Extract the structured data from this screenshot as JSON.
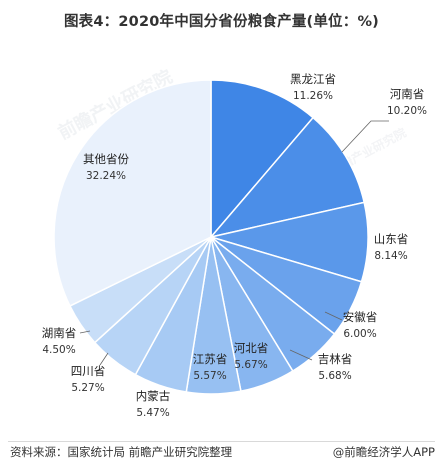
{
  "title": "图表4：2020年中国分省份粮食产量(单位：%)",
  "source": "资料来源：国家统计局 前瞻产业研究院整理",
  "brand": "@前瞻经济学人APP",
  "watermark": "前瞻产业研究院",
  "chart_data": {
    "type": "pie",
    "title": "图表4：2020年中国分省份粮食产量(单位：%)",
    "unit": "%",
    "slices": [
      {
        "label": "黑龙江省",
        "value": 11.26,
        "value_label": "11.26%",
        "color": "#3f86e6"
      },
      {
        "label": "河南省",
        "value": 10.2,
        "value_label": "10.20%",
        "color": "#4b8ee8"
      },
      {
        "label": "山东省",
        "value": 8.14,
        "value_label": "8.14%",
        "color": "#5a98ea"
      },
      {
        "label": "安徽省",
        "value": 6.0,
        "value_label": "6.00%",
        "color": "#6aa2ec"
      },
      {
        "label": "吉林省",
        "value": 5.68,
        "value_label": "5.68%",
        "color": "#79acee"
      },
      {
        "label": "河北省",
        "value": 5.67,
        "value_label": "5.67%",
        "color": "#88b6f0"
      },
      {
        "label": "江苏省",
        "value": 5.57,
        "value_label": "5.57%",
        "color": "#97c0f2"
      },
      {
        "label": "内蒙古",
        "value": 5.47,
        "value_label": "5.47%",
        "color": "#a7caf4"
      },
      {
        "label": "四川省",
        "value": 5.27,
        "value_label": "5.27%",
        "color": "#b7d4f6"
      },
      {
        "label": "湖南省",
        "value": 4.5,
        "value_label": "4.50%",
        "color": "#c8def8"
      },
      {
        "label": "其他省份",
        "value": 32.24,
        "value_label": "32.24%",
        "color": "#e9f1fc"
      }
    ]
  }
}
